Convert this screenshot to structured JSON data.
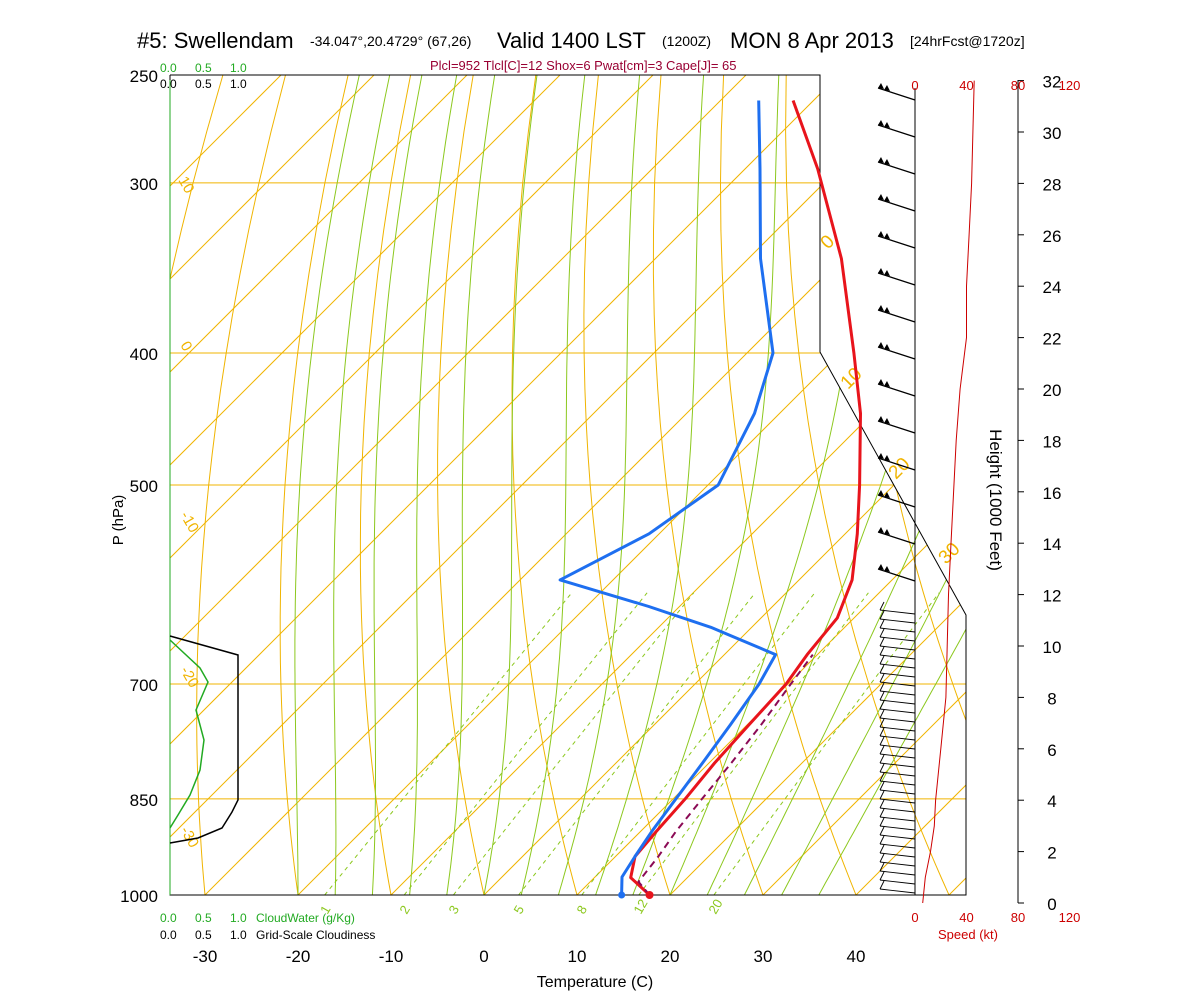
{
  "header": {
    "station": "#5: Swellendam",
    "coords": "-34.047°,20.4729° (67,26)",
    "valid": "Valid 1400 LST",
    "zulu": "(1200Z)",
    "date": "MON 8 Apr 2013",
    "forecast": "[24hrFcst@1720z]",
    "params": "Plcl=952 Tlcl[C]=12 Shox=6 Pwat[cm]=3 Cape[J]= 65"
  },
  "colors": {
    "temperature": "#e8141c",
    "dewpoint": "#1e6ff0",
    "parcel": "#8b0a55",
    "isotherm_isobar": "#f0b400",
    "moist_adiabat": "#8cc81e",
    "mixing_ratio": "#8cc81e",
    "cloudwater": "#22aa22",
    "cloudiness": "#000000",
    "speed": "#cc0000"
  },
  "chart_data": {
    "type": "line",
    "title": "#5: Swellendam",
    "xlabel": "Temperature (C)",
    "ylabel": "P (hPa)",
    "height_label": "Height (1000 Feet)",
    "temp_ticks": [
      -30,
      -20,
      -10,
      0,
      10,
      20,
      30,
      40
    ],
    "pressure_ticks": [
      250,
      300,
      400,
      500,
      700,
      850,
      1000
    ],
    "height_ticks": [
      0,
      2,
      4,
      6,
      8,
      10,
      12,
      14,
      16,
      18,
      20,
      22,
      24,
      26,
      28,
      30,
      32
    ],
    "xlim": [
      -34,
      46
    ],
    "ylim": [
      1000,
      250
    ],
    "isotherm_labels": [
      "10",
      "0",
      "-10",
      "-20",
      "-30",
      "0",
      "10",
      "20",
      "30"
    ],
    "mixing_ratio_labels": [
      "1",
      "2",
      "3",
      "5",
      "8",
      "12",
      "20"
    ],
    "series": [
      {
        "name": "temperature",
        "points": [
          [
            17.8,
            1000
          ],
          [
            13.9,
            971
          ],
          [
            12.1,
            937
          ],
          [
            11.7,
            899
          ],
          [
            11.3,
            850
          ],
          [
            10.6,
            800
          ],
          [
            10.2,
            750
          ],
          [
            9.8,
            700
          ],
          [
            8.9,
            666
          ],
          [
            8.2,
            626
          ],
          [
            5.7,
            587
          ],
          [
            1.3,
            543
          ],
          [
            -3.7,
            500
          ],
          [
            -11.3,
            443
          ],
          [
            -18.5,
            400
          ],
          [
            -30,
            341
          ],
          [
            -42.2,
            293
          ],
          [
            -52.2,
            261
          ]
        ]
      },
      {
        "name": "dewpoint",
        "points": [
          [
            14.8,
            1000
          ],
          [
            12.9,
            970
          ],
          [
            12.1,
            937
          ],
          [
            11.2,
            898
          ],
          [
            10.3,
            850
          ],
          [
            9.3,
            800
          ],
          [
            8.2,
            750
          ],
          [
            6.9,
            700
          ],
          [
            5.5,
            666
          ],
          [
            -4.4,
            636
          ],
          [
            -13.3,
            614
          ],
          [
            -25.7,
            587
          ],
          [
            -21.1,
            543
          ],
          [
            -18.9,
            500
          ],
          [
            -22.7,
            443
          ],
          [
            -27.2,
            400
          ],
          [
            -38.7,
            341
          ],
          [
            -48.4,
            293
          ],
          [
            -55.9,
            261
          ]
        ]
      },
      {
        "name": "parcel",
        "points": [
          [
            17.8,
            1000
          ],
          [
            15.2,
            978
          ],
          [
            14.6,
            937
          ],
          [
            13.8,
            898
          ],
          [
            13.1,
            850
          ],
          [
            12.4,
            800
          ],
          [
            11.5,
            750
          ],
          [
            10.3,
            700
          ],
          [
            9.5,
            666
          ]
        ]
      }
    ],
    "wind_height_ft": [
      0,
      1,
      2,
      3,
      4,
      5,
      6,
      8,
      10,
      12,
      14,
      16,
      18,
      20,
      22,
      24,
      26,
      28,
      30,
      32
    ],
    "wind_speed_kt": [
      6,
      8,
      12,
      15,
      16,
      18,
      20,
      24,
      25,
      26,
      28,
      30,
      32,
      35,
      40,
      40,
      42,
      44,
      45,
      46
    ],
    "speed_axis": {
      "label": "Speed (kt)",
      "ticks": [
        0,
        40,
        80,
        120
      ]
    },
    "cloud_panel": {
      "cloudwater_label": "CloudWater (g/Kg)",
      "cloudiness_label": "Grid-Scale Cloudiness",
      "ticks": [
        "0.0",
        "0.5",
        "1.0"
      ]
    }
  }
}
